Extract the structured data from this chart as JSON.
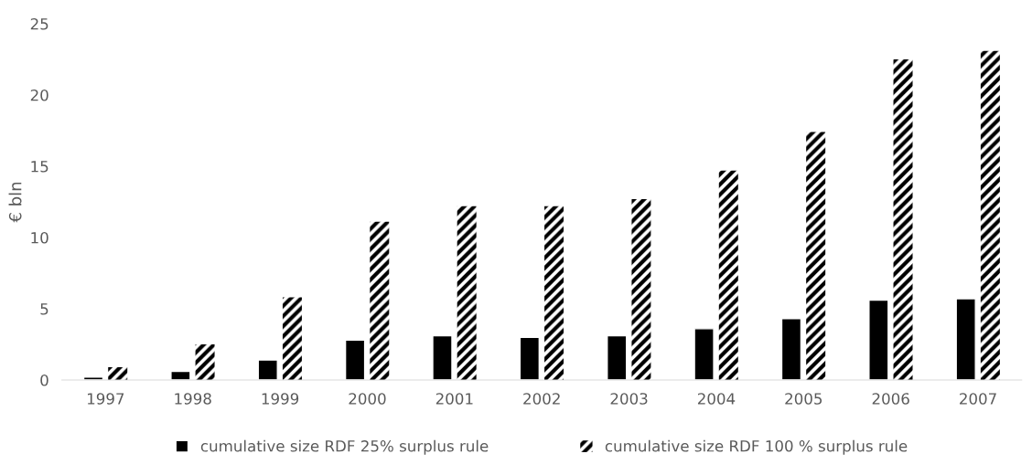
{
  "chart_data": {
    "type": "bar",
    "ylabel": "€ bln",
    "categories": [
      "1997",
      "1998",
      "1999",
      "2000",
      "2001",
      "2002",
      "2003",
      "2004",
      "2005",
      "2006",
      "2007"
    ],
    "series": [
      {
        "name": "cumulative size RDF 25% surplus rule",
        "color": "#000000",
        "values": [
          0.2,
          0.6,
          1.4,
          2.8,
          3.1,
          3.0,
          3.1,
          3.6,
          4.3,
          5.6,
          5.7
        ]
      },
      {
        "name": "cumulative size RDF 100 % surplus rule",
        "color": "#000000",
        "values": [
          0.9,
          2.5,
          5.8,
          11.1,
          12.2,
          12.2,
          12.7,
          14.7,
          17.4,
          22.5,
          23.1
        ]
      }
    ],
    "ylim": [
      0,
      25
    ],
    "yticks": [
      0,
      5,
      10,
      15,
      20,
      25
    ],
    "grid": false,
    "legend": "bottom"
  }
}
